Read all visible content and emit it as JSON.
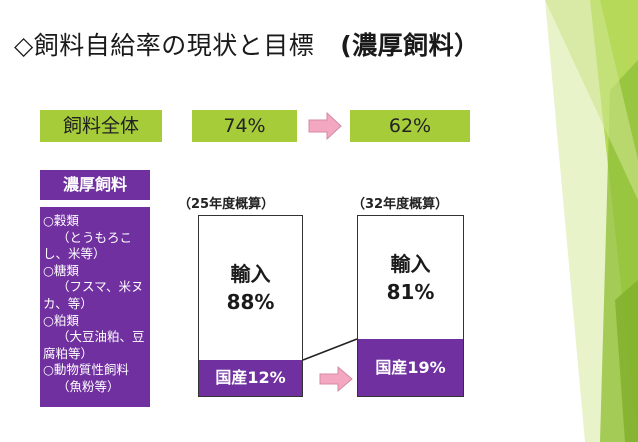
{
  "title": {
    "main": "◇飼料自給率の現状と目標",
    "suffix": "(濃厚飼料）"
  },
  "overall": {
    "label": "飼料全体",
    "current": "74%",
    "target": "62%"
  },
  "concentrate": {
    "label": "濃厚飼料",
    "items": [
      "○穀類",
      "（とうもろこ",
      "し、米等）",
      "○糖類",
      "（フスマ、米ヌ",
      "カ、等）",
      "○粕類",
      "（大豆油粕、豆",
      "腐粕等）",
      "○動物質性飼料",
      "（魚粉等）"
    ]
  },
  "chart_data": {
    "type": "bar",
    "categories": [
      "（25年度概算）",
      "（32年度概算）"
    ],
    "series": [
      {
        "name": "輸入",
        "values": [
          88,
          81
        ],
        "labels": [
          "88%",
          "81%"
        ]
      },
      {
        "name": "国産",
        "values": [
          12,
          19
        ],
        "labels": [
          "国産12%",
          "国産19%"
        ]
      }
    ],
    "colors": {
      "import": "#ffffff",
      "domestic": "#7030a0",
      "accent": "#a6cc3a",
      "arrow": "#f4a7c0"
    }
  }
}
